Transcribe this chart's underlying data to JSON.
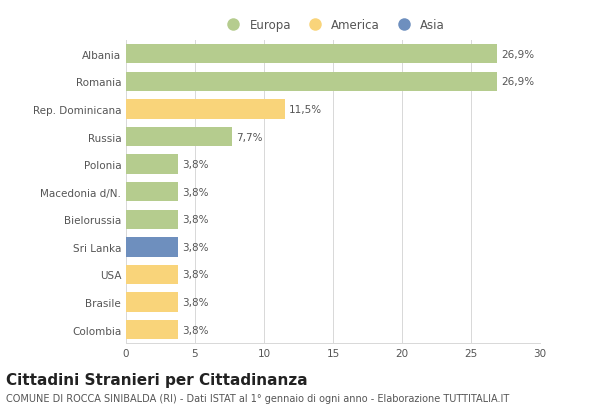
{
  "categories": [
    "Albania",
    "Romania",
    "Rep. Dominicana",
    "Russia",
    "Polonia",
    "Macedonia d/N.",
    "Bielorussia",
    "Sri Lanka",
    "USA",
    "Brasile",
    "Colombia"
  ],
  "values": [
    26.9,
    26.9,
    11.5,
    7.7,
    3.8,
    3.8,
    3.8,
    3.8,
    3.8,
    3.8,
    3.8
  ],
  "labels": [
    "26,9%",
    "26,9%",
    "11,5%",
    "7,7%",
    "3,8%",
    "3,8%",
    "3,8%",
    "3,8%",
    "3,8%",
    "3,8%",
    "3,8%"
  ],
  "colors": [
    "#b5cc8e",
    "#b5cc8e",
    "#f9d47a",
    "#b5cc8e",
    "#b5cc8e",
    "#b5cc8e",
    "#b5cc8e",
    "#6e8fbe",
    "#f9d47a",
    "#f9d47a",
    "#f9d47a"
  ],
  "legend_labels": [
    "Europa",
    "America",
    "Asia"
  ],
  "legend_colors": [
    "#b5cc8e",
    "#f9d47a",
    "#6e8fbe"
  ],
  "xlim": [
    0,
    30
  ],
  "xticks": [
    0,
    5,
    10,
    15,
    20,
    25,
    30
  ],
  "title": "Cittadini Stranieri per Cittadinanza",
  "subtitle": "COMUNE DI ROCCA SINIBALDA (RI) - Dati ISTAT al 1° gennaio di ogni anno - Elaborazione TUTTITALIA.IT",
  "background_color": "#ffffff",
  "grid_color": "#d8d8d8",
  "bar_height": 0.7,
  "title_fontsize": 11,
  "subtitle_fontsize": 7,
  "label_fontsize": 7.5,
  "tick_fontsize": 7.5,
  "legend_fontsize": 8.5
}
